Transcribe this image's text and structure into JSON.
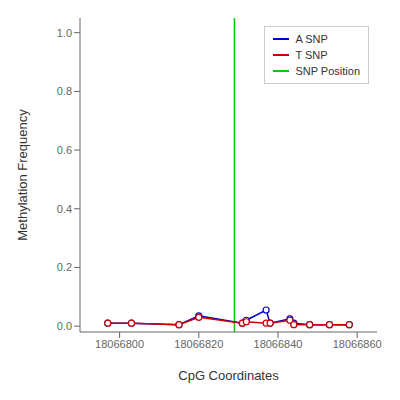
{
  "chart_data": {
    "type": "line",
    "xlabel": "CpG Coordinates",
    "ylabel": "Methylation Frequency",
    "x": [
      18066797,
      18066803,
      18066815,
      18066820,
      18066831,
      18066832,
      18066837,
      18066838,
      18066843,
      18066844,
      18066848,
      18066853,
      18066858
    ],
    "series": [
      {
        "name": "A SNP",
        "color": "#0000cc",
        "values": [
          0.01,
          0.01,
          0.005,
          0.035,
          0.01,
          0.02,
          0.055,
          0.01,
          0.025,
          0.01,
          0.005,
          0.005,
          0.005
        ]
      },
      {
        "name": "T SNP",
        "color": "#cc0000",
        "values": [
          0.01,
          0.01,
          0.005,
          0.03,
          0.01,
          0.015,
          0.01,
          0.01,
          0.02,
          0.005,
          0.005,
          0.005,
          0.005
        ]
      }
    ],
    "vline": {
      "name": "SNP Position",
      "color": "#00cc00",
      "x": 18066829
    },
    "xlim": [
      18066790,
      18066865
    ],
    "ylim": [
      -0.02,
      1.05
    ],
    "xticks": [
      18066800,
      18066820,
      18066840,
      18066860
    ],
    "yticks": [
      {
        "value": 0.0,
        "label": "0.0"
      },
      0.2,
      0.4,
      0.6,
      0.8,
      {
        "value": 1.0,
        "label": "1.0"
      }
    ],
    "marker": "circle",
    "legend": "upper right",
    "grid": false
  }
}
